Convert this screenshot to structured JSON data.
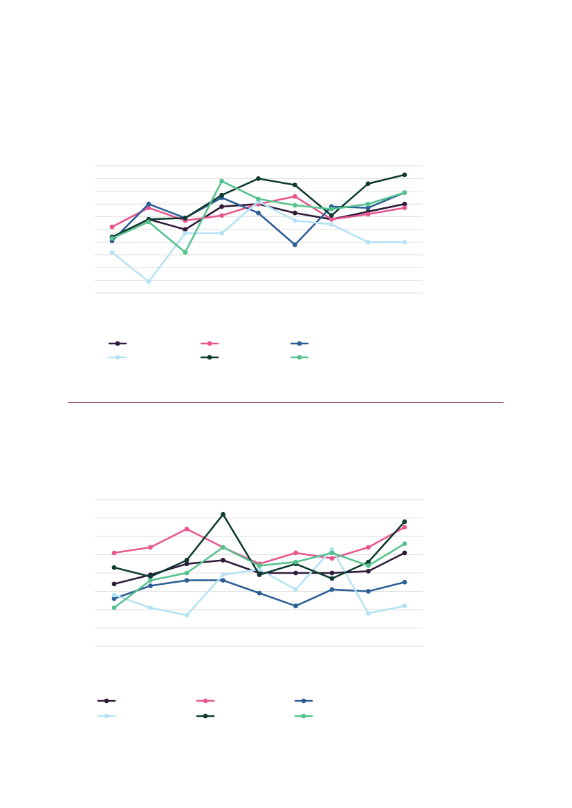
{
  "colors": {
    "s1": "#2e1b3a",
    "s2": "#e8568e",
    "s3": "#2b5f95",
    "s4": "#b5e3f5",
    "s5": "#0f3b32",
    "s6": "#56c28d",
    "grid": "#dddddd",
    "divider": "#8e3b5e"
  },
  "chart_data": [
    {
      "type": "line",
      "grid": true,
      "legend": "bottom",
      "ylim": [
        0,
        10
      ],
      "grid_lines": 11,
      "categories": [
        "",
        "",
        "",
        "",
        "",
        "",
        "",
        "",
        ""
      ],
      "series": [
        {
          "color_key": "s1",
          "values": [
            4.4,
            5.8,
            5.0,
            6.8,
            7.0,
            6.3,
            5.8,
            6.4,
            7.0
          ]
        },
        {
          "color_key": "s2",
          "values": [
            5.2,
            6.7,
            5.7,
            6.1,
            7.0,
            7.6,
            5.8,
            6.2,
            6.7
          ]
        },
        {
          "color_key": "s3",
          "values": [
            4.1,
            7.0,
            5.9,
            7.5,
            6.3,
            3.8,
            6.8,
            6.7,
            7.9
          ]
        },
        {
          "color_key": "s4",
          "values": [
            3.2,
            0.9,
            4.7,
            4.7,
            7.2,
            5.7,
            5.4,
            4.0,
            4.0
          ]
        },
        {
          "color_key": "s5",
          "values": [
            4.4,
            5.8,
            5.9,
            7.7,
            9.0,
            8.5,
            6.1,
            8.6,
            9.3
          ]
        },
        {
          "color_key": "s6",
          "values": [
            4.3,
            5.6,
            3.2,
            8.8,
            7.4,
            6.9,
            6.6,
            7.0,
            7.9
          ]
        }
      ]
    },
    {
      "type": "line",
      "grid": true,
      "legend": "bottom",
      "ylim": [
        0,
        8
      ],
      "grid_lines": 9,
      "categories": [
        "",
        "",
        "",
        "",
        "",
        "",
        "",
        "",
        ""
      ],
      "series": [
        {
          "color_key": "s1",
          "values": [
            3.4,
            3.9,
            4.5,
            4.7,
            4.0,
            4.0,
            4.0,
            4.1,
            5.1
          ]
        },
        {
          "color_key": "s2",
          "values": [
            5.1,
            5.4,
            6.4,
            5.4,
            4.5,
            5.1,
            4.8,
            5.4,
            6.5
          ]
        },
        {
          "color_key": "s3",
          "values": [
            2.6,
            3.3,
            3.6,
            3.6,
            2.9,
            2.2,
            3.1,
            3.0,
            3.5
          ]
        },
        {
          "color_key": "s4",
          "values": [
            2.8,
            2.1,
            1.7,
            3.9,
            4.2,
            3.1,
            5.3,
            1.8,
            2.2
          ]
        },
        {
          "color_key": "s5",
          "values": [
            4.3,
            3.8,
            4.7,
            7.2,
            3.9,
            4.5,
            3.7,
            4.6,
            6.8
          ]
        },
        {
          "color_key": "s6",
          "values": [
            2.1,
            3.6,
            4.0,
            5.4,
            4.4,
            4.6,
            5.1,
            4.4,
            5.6
          ]
        }
      ]
    }
  ]
}
